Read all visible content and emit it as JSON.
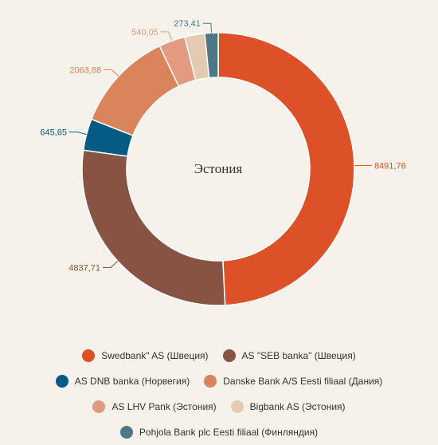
{
  "chart_data": {
    "type": "pie",
    "title": "Эстония",
    "categories": [
      "Swedbank\" AS (Швеция)",
      "AS \"SEB banka\" (Швеция)",
      "AS DNB banka (Норвегия)",
      "Danske Bank A/S Eesti filiaal (Дания)",
      "AS LHV Pank (Эстония)",
      "Bigbank AS (Эстония)",
      "Pohjola Bank plc Eesti filiaal (Финляндия)"
    ],
    "values": [
      8491.76,
      4837.71,
      645.65,
      2063.88,
      540.05,
      410,
      273.41
    ],
    "value_labels": [
      "8491,76",
      "4837,71",
      "645,65",
      "2063,88",
      "540,05",
      "",
      "273,41"
    ],
    "colors": [
      "#dc5128",
      "#875342",
      "#065b85",
      "#d9845a",
      "#e29b80",
      "#e2cbb2",
      "#4f7787"
    ],
    "legend_position": "bottom"
  },
  "legend_rows": [
    [
      0,
      1
    ],
    [
      2,
      3
    ],
    [
      4,
      5
    ],
    [
      6
    ]
  ]
}
